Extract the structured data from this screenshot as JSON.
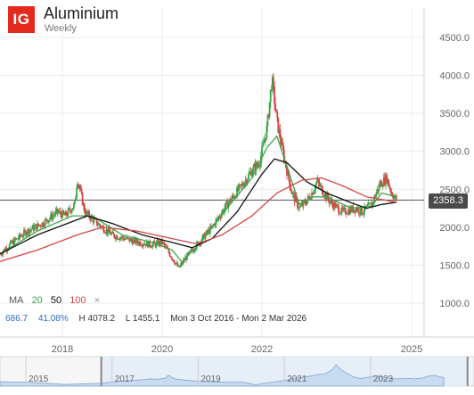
{
  "header": {
    "logo": "IG",
    "title": "Aluminium",
    "subtitle": "Weekly"
  },
  "legend": {
    "ma_label": "MA",
    "ma1": "20",
    "ma2": "50",
    "ma3": "100",
    "close": "×"
  },
  "stats": {
    "change": "686.7",
    "change_pct": "41.08%",
    "high": "H 4078.2",
    "low": "L 1455.1",
    "range": "Mon 3 Oct 2016 - Mon 2 Mar 2026"
  },
  "price_tag": "2358.3",
  "navigator": {
    "labels": [
      "2015",
      "2017",
      "2019",
      "2021",
      "2023"
    ]
  },
  "colors": {
    "ma20": "#3aa64a",
    "ma50": "#111111",
    "ma100": "#d64545",
    "up": "#3aa64a",
    "down": "#d64545",
    "logo": "#e4291d"
  },
  "chart_data": {
    "type": "line",
    "title": "Aluminium",
    "subtitle": "Weekly",
    "x_ticks": [
      "2018",
      "2020",
      "2022",
      "2025"
    ],
    "y_ticks": [
      "1000.0",
      "1500.0",
      "2000.0",
      "2500.0",
      "3000.0",
      "3500.0",
      "4000.0",
      "4500.0"
    ],
    "ylim": [
      1000,
      4500
    ],
    "xlim": [
      2016.75,
      2025.25
    ],
    "current_price": 2358.3,
    "grid": true,
    "series": [
      {
        "name": "Price",
        "values": [
          [
            2016.75,
            1650
          ],
          [
            2017.0,
            1800
          ],
          [
            2017.3,
            1950
          ],
          [
            2017.6,
            2050
          ],
          [
            2017.9,
            2200
          ],
          [
            2018.05,
            2150
          ],
          [
            2018.25,
            2300
          ],
          [
            2018.3,
            2650
          ],
          [
            2018.45,
            2200
          ],
          [
            2018.7,
            2050
          ],
          [
            2019.0,
            1900
          ],
          [
            2019.4,
            1820
          ],
          [
            2019.8,
            1770
          ],
          [
            2020.0,
            1800
          ],
          [
            2020.2,
            1600
          ],
          [
            2020.33,
            1460
          ],
          [
            2020.5,
            1620
          ],
          [
            2020.8,
            1850
          ],
          [
            2021.0,
            2000
          ],
          [
            2021.3,
            2300
          ],
          [
            2021.6,
            2550
          ],
          [
            2021.8,
            2750
          ],
          [
            2021.95,
            2850
          ],
          [
            2022.1,
            3300
          ],
          [
            2022.2,
            3950
          ],
          [
            2022.3,
            3400
          ],
          [
            2022.45,
            2900
          ],
          [
            2022.6,
            2450
          ],
          [
            2022.75,
            2250
          ],
          [
            2022.9,
            2350
          ],
          [
            2023.0,
            2450
          ],
          [
            2023.1,
            2600
          ],
          [
            2023.35,
            2350
          ],
          [
            2023.6,
            2200
          ],
          [
            2023.9,
            2250
          ],
          [
            2024.0,
            2200
          ],
          [
            2024.2,
            2300
          ],
          [
            2024.35,
            2550
          ],
          [
            2024.5,
            2650
          ],
          [
            2024.6,
            2450
          ],
          [
            2024.7,
            2358
          ]
        ]
      },
      {
        "name": "20",
        "values": [
          [
            2016.75,
            1650
          ],
          [
            2017.5,
            1950
          ],
          [
            2018.2,
            2150
          ],
          [
            2018.6,
            2150
          ],
          [
            2019.2,
            1900
          ],
          [
            2019.8,
            1800
          ],
          [
            2020.2,
            1700
          ],
          [
            2020.4,
            1540
          ],
          [
            2020.8,
            1820
          ],
          [
            2021.3,
            2250
          ],
          [
            2021.8,
            2650
          ],
          [
            2022.1,
            3050
          ],
          [
            2022.3,
            3200
          ],
          [
            2022.5,
            2800
          ],
          [
            2022.75,
            2300
          ],
          [
            2023.0,
            2400
          ],
          [
            2023.3,
            2400
          ],
          [
            2023.8,
            2250
          ],
          [
            2024.2,
            2280
          ],
          [
            2024.4,
            2450
          ],
          [
            2024.7,
            2400
          ]
        ]
      },
      {
        "name": "50",
        "values": [
          [
            2016.75,
            1650
          ],
          [
            2017.5,
            1900
          ],
          [
            2018.1,
            2050
          ],
          [
            2018.5,
            2150
          ],
          [
            2019.0,
            2050
          ],
          [
            2019.6,
            1900
          ],
          [
            2020.2,
            1800
          ],
          [
            2020.6,
            1730
          ],
          [
            2021.0,
            1850
          ],
          [
            2021.5,
            2200
          ],
          [
            2022.0,
            2700
          ],
          [
            2022.25,
            2900
          ],
          [
            2022.5,
            2850
          ],
          [
            2022.9,
            2600
          ],
          [
            2023.3,
            2450
          ],
          [
            2023.8,
            2320
          ],
          [
            2024.1,
            2250
          ],
          [
            2024.4,
            2300
          ],
          [
            2024.7,
            2330
          ]
        ]
      },
      {
        "name": "100",
        "values": [
          [
            2016.75,
            1550
          ],
          [
            2017.5,
            1700
          ],
          [
            2018.3,
            1900
          ],
          [
            2018.8,
            2000
          ],
          [
            2019.5,
            1950
          ],
          [
            2020.2,
            1850
          ],
          [
            2020.7,
            1780
          ],
          [
            2021.2,
            1900
          ],
          [
            2021.8,
            2150
          ],
          [
            2022.3,
            2450
          ],
          [
            2022.8,
            2620
          ],
          [
            2023.2,
            2650
          ],
          [
            2023.6,
            2550
          ],
          [
            2024.1,
            2400
          ],
          [
            2024.7,
            2330
          ]
        ]
      }
    ]
  }
}
